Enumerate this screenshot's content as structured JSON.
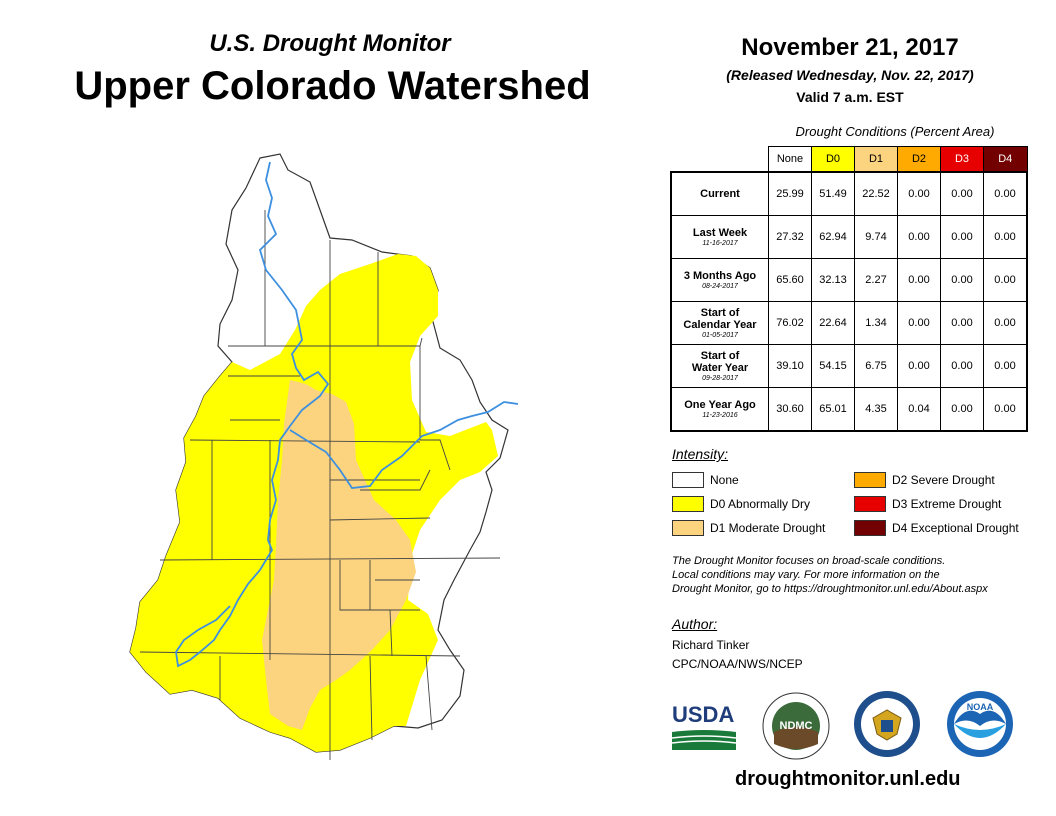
{
  "header": {
    "subtitle": "U.S. Drought Monitor",
    "title": "Upper Colorado Watershed",
    "date": "November 21, 2017",
    "released": "(Released Wednesday, Nov. 22, 2017)",
    "valid": "Valid 7 a.m. EST"
  },
  "table": {
    "title": "Drought Conditions (Percent Area)",
    "columns": [
      {
        "label": "None",
        "color": "#ffffff"
      },
      {
        "label": "D0",
        "color": "#ffff00"
      },
      {
        "label": "D1",
        "color": "#fcd37f"
      },
      {
        "label": "D2",
        "color": "#ffaa00"
      },
      {
        "label": "D3",
        "color": "#e60000"
      },
      {
        "label": "D4",
        "color": "#730000"
      }
    ],
    "rows": [
      {
        "label": "Current",
        "label2": "",
        "date": "",
        "values": [
          "25.99",
          "51.49",
          "22.52",
          "0.00",
          "0.00",
          "0.00"
        ]
      },
      {
        "label": "Last Week",
        "label2": "",
        "date": "11-16-2017",
        "values": [
          "27.32",
          "62.94",
          "9.74",
          "0.00",
          "0.00",
          "0.00"
        ]
      },
      {
        "label": "3 Months Ago",
        "label2": "",
        "date": "08-24-2017",
        "values": [
          "65.60",
          "32.13",
          "2.27",
          "0.00",
          "0.00",
          "0.00"
        ]
      },
      {
        "label": "Start of",
        "label2": "Calendar Year",
        "date": "01-05-2017",
        "values": [
          "76.02",
          "22.64",
          "1.34",
          "0.00",
          "0.00",
          "0.00"
        ]
      },
      {
        "label": "Start of",
        "label2": "Water Year",
        "date": "09-28-2017",
        "values": [
          "39.10",
          "54.15",
          "6.75",
          "0.00",
          "0.00",
          "0.00"
        ]
      },
      {
        "label": "One Year Ago",
        "label2": "",
        "date": "11-23-2016",
        "values": [
          "30.60",
          "65.01",
          "4.35",
          "0.04",
          "0.00",
          "0.00"
        ]
      }
    ]
  },
  "legend": {
    "title": "Intensity:",
    "items": [
      {
        "label": "None",
        "color": "#ffffff"
      },
      {
        "label": "D0 Abnormally Dry",
        "color": "#ffff00"
      },
      {
        "label": "D1 Moderate Drought",
        "color": "#fcd37f"
      },
      {
        "label": "D2 Severe Drought",
        "color": "#ffaa00"
      },
      {
        "label": "D3 Extreme Drought",
        "color": "#e60000"
      },
      {
        "label": "D4 Exceptional Drought",
        "color": "#730000"
      }
    ]
  },
  "note": {
    "line1": "The Drought Monitor focuses on broad-scale conditions.",
    "line2": "Local conditions may vary. For more information on the",
    "line3": "Drought Monitor, go to https://droughtmonitor.unl.edu/About.aspx"
  },
  "author": {
    "title": "Author:",
    "name": "Richard Tinker",
    "org": "CPC/NOAA/NWS/NCEP"
  },
  "logos": {
    "usda": "USDA",
    "ndmc": "NDMC",
    "noaa": "NOAA"
  },
  "url": "droughtmonitor.unl.edu",
  "colors": {
    "none": "#ffffff",
    "d0": "#ffff00",
    "d1": "#fcd37f",
    "river": "#3d8fe0"
  }
}
